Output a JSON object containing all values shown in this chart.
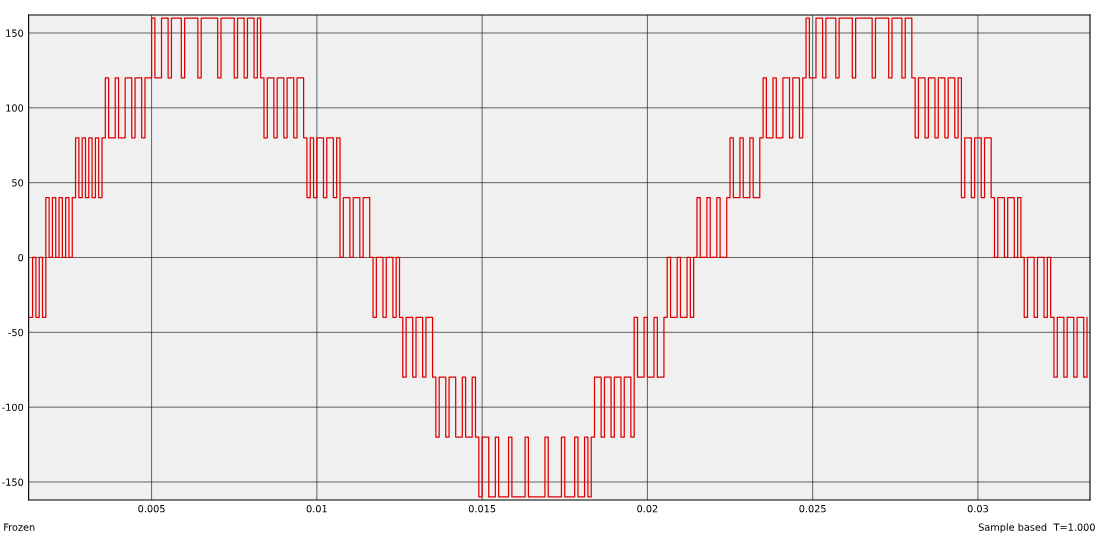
{
  "chart_data": {
    "type": "step",
    "xlim": [
      0.00128,
      0.03339
    ],
    "ylim": [
      -162,
      162
    ],
    "xticks": [
      0.005,
      0.01,
      0.015,
      0.02,
      0.025,
      0.03
    ],
    "yticks": [
      -150,
      -100,
      -50,
      0,
      50,
      100,
      150
    ],
    "grid": true,
    "legend": false,
    "annotations": [
      "Frozen",
      "Sample based",
      "T=1.000"
    ],
    "series": [
      {
        "color": "#e00000",
        "x": [
          0.0013,
          0.0014,
          0.0015,
          0.0016,
          0.0017,
          0.0018,
          0.0019,
          0.002,
          0.0021,
          0.0022,
          0.0023,
          0.0024,
          0.0025,
          0.0026,
          0.0027,
          0.0028,
          0.0029,
          0.003,
          0.0031,
          0.0032,
          0.0033,
          0.0034,
          0.0035,
          0.0036,
          0.0037,
          0.0039,
          0.004,
          0.0042,
          0.0044,
          0.0045,
          0.0047,
          0.0048,
          0.005,
          0.0051,
          0.0053,
          0.0055,
          0.0056,
          0.0059,
          0.006,
          0.0064,
          0.0065,
          0.007,
          0.0071,
          0.0075,
          0.0076,
          0.0078,
          0.0079,
          0.0081,
          0.0082,
          0.0083,
          0.0084,
          0.0085,
          0.0087,
          0.0088,
          0.009,
          0.0091,
          0.0093,
          0.0094,
          0.0096,
          0.0097,
          0.0098,
          0.0099,
          0.01,
          0.0102,
          0.0103,
          0.0105,
          0.0106,
          0.0107,
          0.0108,
          0.011,
          0.0111,
          0.0113,
          0.0114,
          0.0116,
          0.0117,
          0.0118,
          0.012,
          0.0121,
          0.0123,
          0.0124,
          0.0125,
          0.0126,
          0.0127,
          0.0129,
          0.013,
          0.0132,
          0.0133,
          0.0135,
          0.0136,
          0.0137,
          0.0139,
          0.014,
          0.0142,
          0.0144,
          0.0145,
          0.0147,
          0.0148,
          0.0149,
          0.015,
          0.0152,
          0.0154,
          0.0155,
          0.0158,
          0.0159,
          0.0163,
          0.0164,
          0.0169,
          0.017,
          0.0174,
          0.0175,
          0.0178,
          0.0179,
          0.0181,
          0.0182,
          0.0183,
          0.0184,
          0.0186,
          0.0187,
          0.0189,
          0.019,
          0.0192,
          0.0193,
          0.0195,
          0.0196,
          0.0197,
          0.0199,
          0.02,
          0.0202,
          0.0203,
          0.0205,
          0.0206,
          0.0207,
          0.0209,
          0.021,
          0.0212,
          0.0213,
          0.0214,
          0.0215,
          0.0216,
          0.0218,
          0.0219,
          0.0221,
          0.0222,
          0.0224,
          0.0225,
          0.0226,
          0.0228,
          0.0229,
          0.0231,
          0.0232,
          0.0234,
          0.0235,
          0.0236,
          0.0238,
          0.0239,
          0.0241,
          0.0243,
          0.0244,
          0.0246,
          0.0247,
          0.0248,
          0.0249,
          0.0251,
          0.0253,
          0.0254,
          0.0257,
          0.0258,
          0.0262,
          0.0263,
          0.0268,
          0.0269,
          0.0273,
          0.0274,
          0.0277,
          0.0278,
          0.028,
          0.0281,
          0.0282,
          0.0284,
          0.0285,
          0.0287,
          0.0288,
          0.029,
          0.0291,
          0.0293,
          0.0294,
          0.0295,
          0.0296,
          0.0298,
          0.0299,
          0.0301,
          0.0302,
          0.0304,
          0.0305,
          0.0306,
          0.0308,
          0.0309,
          0.0311,
          0.0312,
          0.0313,
          0.0314,
          0.0315,
          0.0317,
          0.0318,
          0.032,
          0.0321,
          0.0322,
          0.0323,
          0.0324,
          0.0326,
          0.0327,
          0.0329,
          0.033,
          0.0332,
          0.0333
        ],
        "values": [
          -40,
          0,
          -40,
          0,
          -40,
          40,
          0,
          40,
          0,
          40,
          0,
          40,
          0,
          40,
          80,
          40,
          80,
          40,
          80,
          40,
          80,
          40,
          80,
          120,
          80,
          120,
          80,
          120,
          80,
          120,
          80,
          120,
          160,
          120,
          160,
          120,
          160,
          120,
          160,
          120,
          160,
          120,
          160,
          120,
          160,
          120,
          160,
          120,
          160,
          120,
          80,
          120,
          80,
          120,
          80,
          120,
          80,
          120,
          80,
          40,
          80,
          40,
          80,
          40,
          80,
          40,
          80,
          0,
          40,
          0,
          40,
          0,
          40,
          0,
          -40,
          0,
          -40,
          0,
          -40,
          0,
          -40,
          -80,
          -40,
          -80,
          -40,
          -80,
          -40,
          -80,
          -120,
          -80,
          -120,
          -80,
          -120,
          -80,
          -120,
          -80,
          -120,
          -160,
          -120,
          -160,
          -120,
          -160,
          -120,
          -160,
          -120,
          -160,
          -120,
          -160,
          -120,
          -160,
          -120,
          -160,
          -120,
          -160,
          -120,
          -80,
          -120,
          -80,
          -120,
          -80,
          -120,
          -80,
          -120,
          -40,
          -80,
          -40,
          -80,
          -40,
          -80,
          -40,
          0,
          -40,
          0,
          -40,
          0,
          -40,
          0,
          40,
          0,
          40,
          0,
          40,
          0,
          40,
          80,
          40,
          80,
          40,
          80,
          40,
          80,
          120,
          80,
          120,
          80,
          120,
          80,
          120,
          80,
          120,
          160,
          120,
          160,
          120,
          160,
          120,
          160,
          120,
          160,
          120,
          160,
          120,
          160,
          120,
          160,
          120,
          80,
          120,
          80,
          120,
          80,
          120,
          80,
          120,
          80,
          120,
          40,
          80,
          40,
          80,
          40,
          80,
          40,
          0,
          40,
          0,
          40,
          0,
          40,
          0,
          -40,
          0,
          -40,
          0,
          -40,
          0,
          -40,
          -80,
          -40,
          -80,
          -40,
          -80,
          -40,
          -80,
          -40
        ]
      }
    ]
  }
}
